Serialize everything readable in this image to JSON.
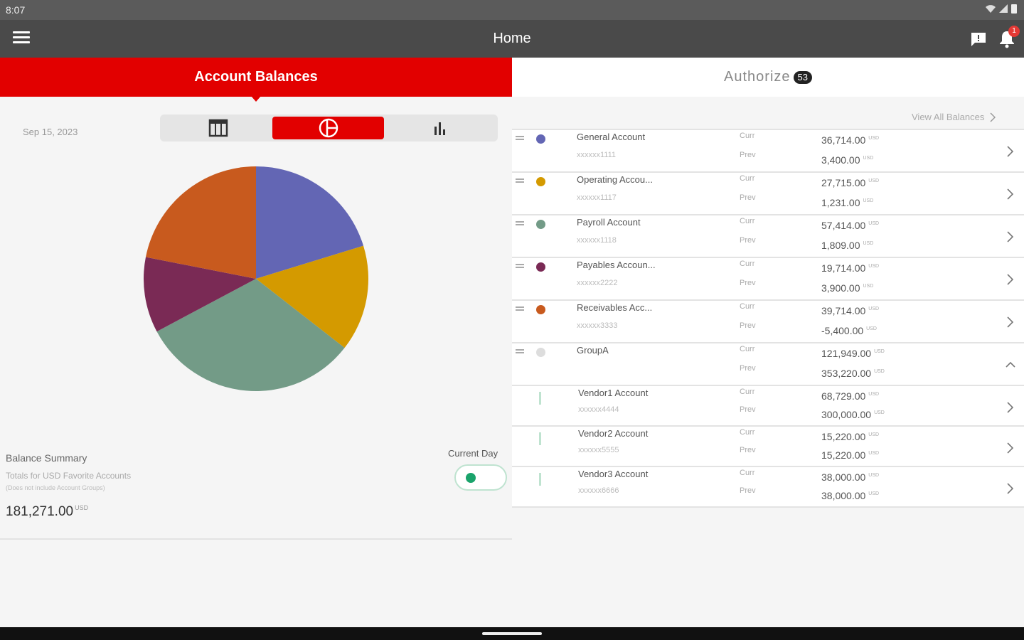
{
  "status": {
    "time": "8:07"
  },
  "appbar": {
    "title": "Home",
    "notification_count": "1"
  },
  "tabs": {
    "account_balances": "Account Balances",
    "authorize": "Authorize",
    "authorize_count": "53"
  },
  "left": {
    "date": "Sep 15, 2023",
    "view_modes": [
      "table-icon",
      "pie-chart-icon",
      "bar-chart-icon"
    ],
    "selected_view": "pie-chart",
    "balance_summary": {
      "title": "Balance Summary",
      "subtitle": "Totals for USD Favorite Accounts",
      "note": "(Does not include Account Groups)",
      "total": "181,271.00",
      "currency": "USD"
    },
    "current_day": {
      "label": "Current Day",
      "on": true
    }
  },
  "chart_data": {
    "type": "pie",
    "categories": [
      "General Account",
      "Operating Accou...",
      "Payroll Account",
      "Payables Accoun...",
      "Receivables Acc..."
    ],
    "values": [
      36714,
      27715,
      57414,
      19714,
      39714
    ],
    "colors": [
      "#6366b4",
      "#d49a00",
      "#739b87",
      "#7a2a55",
      "#c85a1e"
    ]
  },
  "right": {
    "view_all": "View All Balances",
    "curr_label": "Curr",
    "prev_label": "Prev",
    "accounts": [
      {
        "name": "General Account",
        "number": "xxxxxx1111",
        "curr": "36,714.00",
        "prev": "3,400.00",
        "ccy": "USD",
        "color": "#6366b4"
      },
      {
        "name": "Operating Accou...",
        "number": "xxxxxx1117",
        "curr": "27,715.00",
        "prev": "1,231.00",
        "ccy": "USD",
        "color": "#d49a00"
      },
      {
        "name": "Payroll Account",
        "number": "xxxxxx1118",
        "curr": "57,414.00",
        "prev": "1,809.00",
        "ccy": "USD",
        "color": "#739b87"
      },
      {
        "name": "Payables Accoun...",
        "number": "xxxxxx2222",
        "curr": "19,714.00",
        "prev": "3,900.00",
        "ccy": "USD",
        "color": "#7a2a55"
      },
      {
        "name": "Receivables Acc...",
        "number": "xxxxxx3333",
        "curr": "39,714.00",
        "prev": "-5,400.00",
        "ccy": "USD",
        "color": "#c85a1e"
      }
    ],
    "group": {
      "name": "GroupA",
      "curr": "121,949.00",
      "prev": "353,220.00",
      "ccy": "USD",
      "color": "#dddddd"
    },
    "group_members": [
      {
        "name": "Vendor1 Account",
        "number": "xxxxxx4444",
        "curr": "68,729.00",
        "prev": "300,000.00",
        "ccy": "USD"
      },
      {
        "name": "Vendor2 Account",
        "number": "xxxxxx5555",
        "curr": "15,220.00",
        "prev": "15,220.00",
        "ccy": "USD"
      },
      {
        "name": "Vendor3 Account",
        "number": "xxxxxx6666",
        "curr": "38,000.00",
        "prev": "38,000.00",
        "ccy": "USD"
      }
    ]
  }
}
